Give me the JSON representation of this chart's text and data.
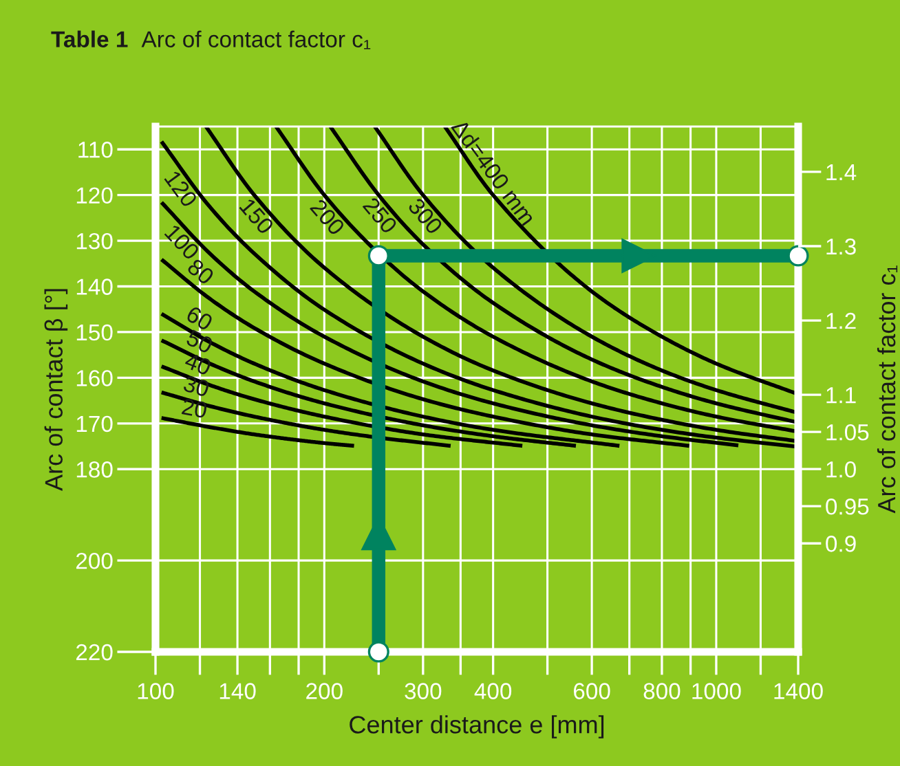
{
  "chart_data": {
    "type": "line",
    "title": "Table 1  Arc of contact factor c₁",
    "xlabel": "Center distance e [mm]",
    "ylabel": "Arc of contact β [°]",
    "y2label": "Arc of contact factor c₁",
    "log": "x",
    "grid": true,
    "legend": false,
    "xlim": [
      100,
      1400
    ],
    "xticks": [
      100,
      {
        "value": 120,
        "label": null
      },
      140,
      {
        "value": 160,
        "label": null
      },
      {
        "value": 180,
        "label": null
      },
      200,
      {
        "value": 250,
        "label": null
      },
      300,
      {
        "value": 350,
        "label": null
      },
      400,
      {
        "value": 500,
        "label": null
      },
      600,
      {
        "value": 700,
        "label": null
      },
      800,
      {
        "value": 900,
        "label": null
      },
      1000,
      {
        "value": 1200,
        "label": null
      },
      1400
    ],
    "ylim": [
      220,
      105
    ],
    "yticks": [
      110,
      120,
      130,
      140,
      150,
      160,
      170,
      180,
      200,
      220
    ],
    "y2lim": [
      0.754,
      1.461
    ],
    "y2ticks": [
      0.9,
      0.95,
      {
        "value": 1,
        "label": "1.0"
      },
      1.05,
      1.1,
      1.2,
      1.3,
      1.4
    ],
    "series": [
      {
        "name": "20",
        "color": "#000000",
        "x": [
          102.5,
          125,
          150,
          200,
          226
        ],
        "values": [
          168.8,
          170.8,
          172.4,
          174.3,
          174.9
        ]
      },
      {
        "name": "30",
        "color": "#000000",
        "x": [
          102.5,
          125,
          150,
          200,
          250,
          336
        ],
        "values": [
          163.2,
          166.2,
          168.5,
          171.4,
          173.1,
          174.9
        ]
      },
      {
        "name": "40",
        "color": "#000000",
        "x": [
          102.5,
          125,
          150,
          200,
          300,
          451
        ],
        "values": [
          157.5,
          161.6,
          164.7,
          168.5,
          172.4,
          174.9
        ]
      },
      {
        "name": "50",
        "color": "#000000",
        "x": [
          102.5,
          125,
          150,
          200,
          300,
          400,
          562
        ],
        "values": [
          151.8,
          156.9,
          160.8,
          165.6,
          170.4,
          172.8,
          174.9
        ]
      },
      {
        "name": "60",
        "color": "#000000",
        "x": [
          102.5,
          125,
          150,
          200,
          300,
          400,
          672
        ],
        "values": [
          146.0,
          152.2,
          156.9,
          162.7,
          168.5,
          171.4,
          174.9
        ]
      },
      {
        "name": "80",
        "color": "#000000",
        "x": [
          102.5,
          125,
          150,
          200,
          300,
          400,
          600,
          895
        ],
        "values": [
          134.1,
          142.7,
          149.1,
          156.9,
          164.7,
          168.5,
          172.4,
          174.9
        ]
      },
      {
        "name": "100",
        "color": "#000000",
        "x": [
          102.5,
          125,
          150,
          200,
          300,
          400,
          600,
          800,
          1095
        ],
        "values": [
          121.6,
          132.8,
          141.1,
          151.0,
          160.8,
          165.6,
          170.4,
          172.8,
          174.8
        ]
      },
      {
        "name": "120",
        "color": "#000000",
        "x": [
          102.5,
          125,
          150,
          200,
          300,
          400,
          600,
          800,
          1000,
          1400
        ],
        "values": [
          108.3,
          122.6,
          132.8,
          145.1,
          156.9,
          162.7,
          168.5,
          171.4,
          173.1,
          175.1
        ]
      },
      {
        "name": "150",
        "color": "#000000",
        "x": [
          123,
          150,
          200,
          300,
          400,
          600,
          800,
          1000,
          1400
        ],
        "values": [
          105,
          120.0,
          135.9,
          151.0,
          158.4,
          165.6,
          169.2,
          171.4,
          173.9
        ]
      },
      {
        "name": "200",
        "color": "#000000",
        "x": [
          164,
          200,
          250,
          300,
          400,
          600,
          800,
          1000,
          1400
        ],
        "values": [
          105,
          120.0,
          132.8,
          141.1,
          151.0,
          160.8,
          165.6,
          168.5,
          171.8
        ]
      },
      {
        "name": "250",
        "color": "#000000",
        "x": [
          205,
          250,
          300,
          400,
          600,
          800,
          1000,
          1400
        ],
        "values": [
          105,
          120.0,
          130.8,
          143.6,
          156.0,
          162.0,
          165.6,
          169.8
        ]
      },
      {
        "name": "300",
        "color": "#000000",
        "x": [
          246,
          300,
          400,
          600,
          800,
          1000,
          1400
        ],
        "values": [
          105,
          120.0,
          135.9,
          151.0,
          158.4,
          162.7,
          167.7
        ]
      },
      {
        "name": "Δd=400 mm",
        "color": "#000000",
        "x": [
          328,
          400,
          600,
          800,
          1000,
          1400
        ],
        "values": [
          105,
          120.0,
          141.1,
          151.0,
          156.9,
          163.6
        ]
      },
      {
        "color": "#00835f",
        "marker": "circle",
        "x": [
          250,
          250,
          1400
        ],
        "values": [
          220,
          133.3,
          133.3
        ]
      }
    ]
  }
}
